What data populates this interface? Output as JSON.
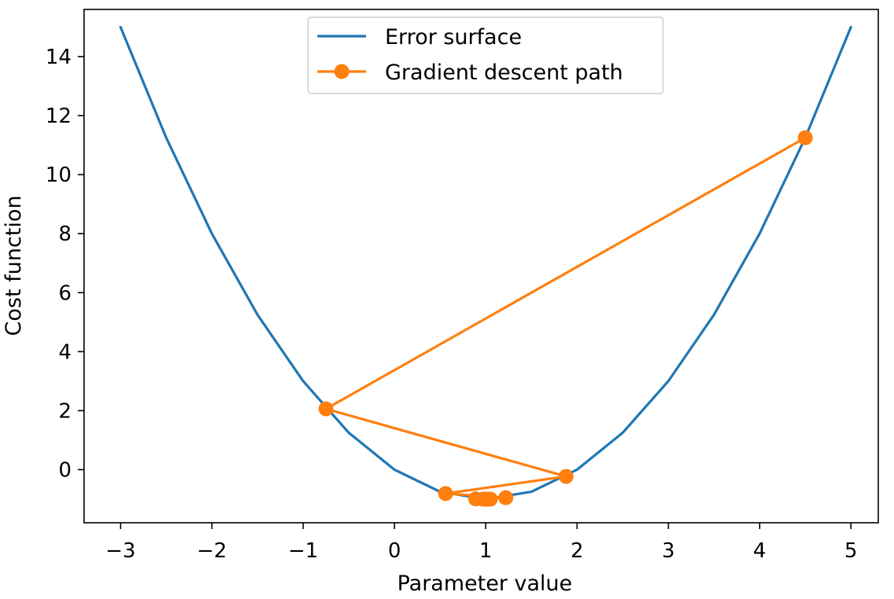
{
  "chart_data": {
    "type": "line",
    "title": "",
    "xlabel": "Parameter value",
    "ylabel": "Cost function",
    "xlim": [
      -3.4,
      5.3
    ],
    "ylim": [
      -1.8,
      15.6
    ],
    "xticks": [
      -3,
      -2,
      -1,
      0,
      1,
      2,
      3,
      4,
      5
    ],
    "xtick_labels": [
      "−3",
      "−2",
      "−1",
      "0",
      "1",
      "2",
      "3",
      "4",
      "5"
    ],
    "yticks": [
      0,
      2,
      4,
      6,
      8,
      10,
      12,
      14
    ],
    "ytick_labels": [
      "0",
      "2",
      "4",
      "6",
      "8",
      "10",
      "12",
      "14"
    ],
    "grid": false,
    "legend_position": "top-center",
    "series": [
      {
        "name": "Error surface",
        "style": "line",
        "color": "#1f77b4",
        "x": [
          -3.0,
          -2.5,
          -2.0,
          -1.5,
          -1.0,
          -0.5,
          0.0,
          0.5,
          1.0,
          1.5,
          2.0,
          2.5,
          3.0,
          3.5,
          4.0,
          4.5,
          5.0
        ],
        "y": [
          15.0,
          11.25,
          8.0,
          5.25,
          3.0,
          1.25,
          0.0,
          -0.75,
          -1.0,
          -0.75,
          0.0,
          1.25,
          3.0,
          5.25,
          8.0,
          11.25,
          15.0
        ]
      },
      {
        "name": "Gradient descent path",
        "style": "line-marker",
        "color": "#ff7f0e",
        "x": [
          4.5,
          -0.75,
          1.88,
          0.56,
          1.22,
          0.89,
          1.05,
          0.97,
          1.01,
          0.99,
          1.0
        ],
        "y": [
          11.25,
          2.06,
          -0.23,
          -0.81,
          -0.95,
          -0.99,
          -1.0,
          -1.0,
          -1.0,
          -1.0,
          -1.0
        ]
      }
    ]
  }
}
